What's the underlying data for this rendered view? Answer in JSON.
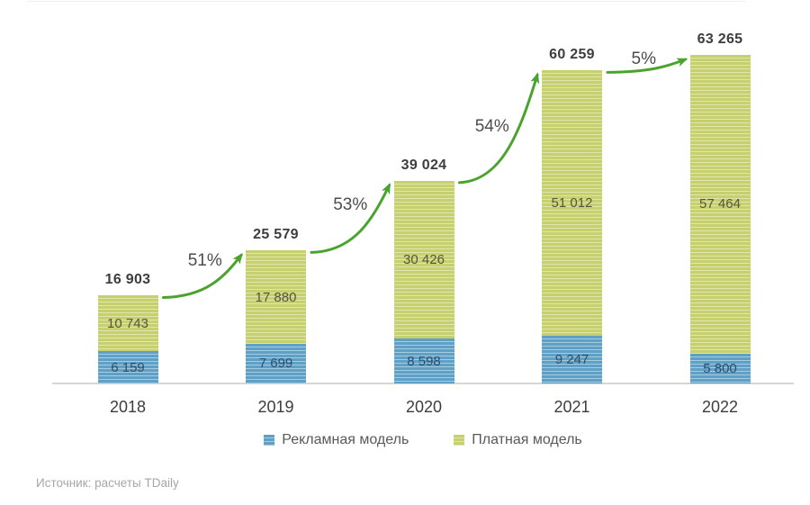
{
  "chart_data": {
    "type": "bar",
    "stacked": true,
    "categories": [
      "2018",
      "2019",
      "2020",
      "2021",
      "2022"
    ],
    "series": [
      {
        "name": "Рекламная модель",
        "color": "#60a0c6",
        "values": [
          6159,
          7699,
          8598,
          9247,
          5800
        ],
        "labels": [
          "6 159",
          "7 699",
          "8 598",
          "9 247",
          "5 800"
        ]
      },
      {
        "name": "Платная модель",
        "color": "#c6d06e",
        "values": [
          10743,
          17880,
          30426,
          51012,
          57464
        ],
        "labels": [
          "10 743",
          "17 880",
          "30 426",
          "51 012",
          "57 464"
        ]
      }
    ],
    "totals": [
      16903,
      25579,
      39024,
      60259,
      63265
    ],
    "total_labels": [
      "16 903",
      "25 579",
      "39 024",
      "60 259",
      "63 265"
    ],
    "growth_labels": [
      "51%",
      "53%",
      "54%",
      "5%"
    ],
    "title": "",
    "xlabel": "",
    "ylabel": "",
    "ylim": [
      0,
      63265
    ],
    "grid": false,
    "legend_position": "bottom"
  },
  "legend": {
    "items": [
      {
        "label": "Рекламная модель",
        "color": "#60a0c6"
      },
      {
        "label": "Платная модель",
        "color": "#c6d06e"
      }
    ]
  },
  "source_note": "Источник: расчеты TDaily",
  "colors": {
    "advertising_base": "#60a0c6",
    "advertising_stripe": "#a3cce1",
    "paid_base": "#c6d06e",
    "paid_stripe": "#dfe5ab",
    "arrow": "#4aa32c",
    "axis": "#d6d6d6",
    "text": "#3d3d3d",
    "source_text": "#a6a6a6"
  }
}
